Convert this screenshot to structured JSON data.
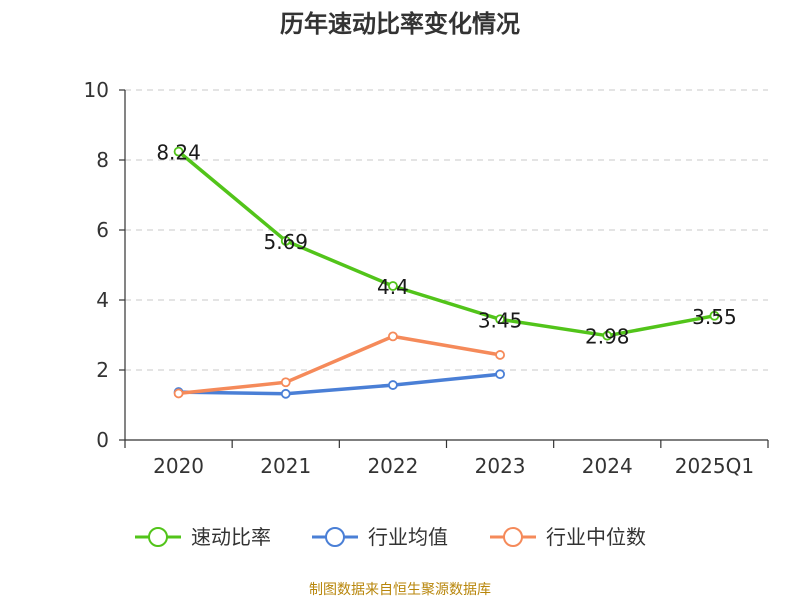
{
  "chart_data": {
    "type": "line",
    "title": "历年速动比率变化情况",
    "categories": [
      "2020",
      "2021",
      "2022",
      "2023",
      "2024",
      "2025Q1"
    ],
    "y_ticks": [
      "0",
      "2",
      "4",
      "6",
      "8",
      "10"
    ],
    "ylim": [
      0,
      10
    ],
    "xlabel": "",
    "ylabel": "",
    "grid": true,
    "legend_position": "bottom",
    "series": [
      {
        "name": "速动比率",
        "color": "#52c41a",
        "values": [
          8.24,
          5.69,
          4.4,
          3.45,
          2.98,
          3.55
        ],
        "labels": [
          "8.24",
          "5.69",
          "4.4",
          "3.45",
          "2.98",
          "3.55"
        ]
      },
      {
        "name": "行业均值",
        "color": "#4a7fd6",
        "values": [
          1.37,
          1.32,
          1.57,
          1.88,
          null,
          null
        ]
      },
      {
        "name": "行业中位数",
        "color": "#f58a5a",
        "values": [
          1.33,
          1.65,
          2.96,
          2.43,
          null,
          null
        ]
      }
    ]
  },
  "footer": {
    "source": "制图数据来自恒生聚源数据库"
  }
}
